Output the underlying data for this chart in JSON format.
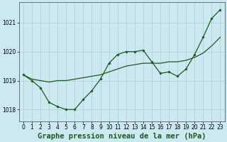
{
  "background_color": "#cce8f0",
  "grid_color": "#b0ccd4",
  "line_color": "#1a5c1a",
  "marker_color": "#1a5c1a",
  "xlim": [
    -0.5,
    23.5
  ],
  "ylim": [
    1017.6,
    1021.7
  ],
  "yticks": [
    1018,
    1019,
    1020,
    1021
  ],
  "xticks": [
    0,
    1,
    2,
    3,
    4,
    5,
    6,
    7,
    8,
    9,
    10,
    11,
    12,
    13,
    14,
    15,
    16,
    17,
    18,
    19,
    20,
    21,
    22,
    23
  ],
  "series1_y": [
    1019.2,
    1019.0,
    1018.75,
    1018.25,
    1018.1,
    1018.0,
    1018.0,
    1018.35,
    1018.65,
    1019.05,
    1019.6,
    1019.9,
    1020.0,
    1020.0,
    1020.05,
    1019.65,
    1019.25,
    1019.3,
    1019.15,
    1019.4,
    1019.9,
    1020.5,
    1021.15,
    1021.45
  ],
  "series2_y": [
    1019.2,
    1019.05,
    1019.0,
    1018.95,
    1019.0,
    1019.0,
    1019.05,
    1019.1,
    1019.15,
    1019.2,
    1019.3,
    1019.4,
    1019.5,
    1019.55,
    1019.6,
    1019.6,
    1019.6,
    1019.65,
    1019.65,
    1019.7,
    1019.8,
    1019.95,
    1020.2,
    1020.5
  ],
  "xlabel": "Graphe pression niveau de la mer (hPa)",
  "xlabel_fontsize": 7.5,
  "tick_fontsize": 5.5
}
